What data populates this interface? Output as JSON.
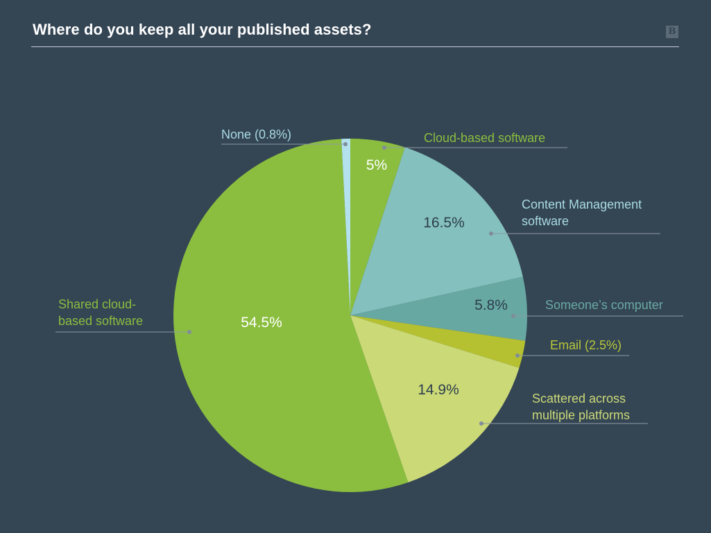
{
  "title": "Where do you keep all your published assets?",
  "logo": {
    "text": "B",
    "icon": "brand-logo-icon"
  },
  "colors": {
    "background": "#344554",
    "leader": "#8e9aa5",
    "dot": "#7f8d99"
  },
  "chart_data": {
    "type": "pie",
    "title": "Where do you keep all your published assets?",
    "start_angle_deg": 0,
    "direction": "clockwise",
    "slices": [
      {
        "label": "Cloud-based software",
        "value": 5,
        "value_label": "5%",
        "color": "#8bbe3f",
        "label_color": "#8bbe3f",
        "value_color": "#ffffff"
      },
      {
        "label": "Content Management software",
        "value": 16.5,
        "value_label": "16.5%",
        "color": "#84c0bd",
        "label_color": "#a9dbe3",
        "value_color": "#2d3e4d"
      },
      {
        "label": "Someone’s computer",
        "value": 5.8,
        "value_label": "5.8%",
        "color": "#67a8a2",
        "label_color": "#6aaaa4",
        "value_color": "#2d3e4d"
      },
      {
        "label": "Email (2.5%)",
        "value": 2.5,
        "value_label": "",
        "color": "#b5c131",
        "label_color": "#b9c83a",
        "value_color": "#2d3e4d"
      },
      {
        "label": "Scattered across multiple platforms",
        "value": 14.9,
        "value_label": "14.9%",
        "color": "#cbd977",
        "label_color": "#cbd977",
        "value_color": "#2d3e4d"
      },
      {
        "label": "Shared cloud-based software",
        "value": 54.5,
        "value_label": "54.5%",
        "color": "#8bbe3f",
        "label_color": "#8bbe3f",
        "value_color": "#ffffff"
      },
      {
        "label": "None (0.8%)",
        "value": 0.8,
        "value_label": "",
        "color": "#b3e2ee",
        "label_color": "#a9dbe3",
        "value_color": "#2d3e4d"
      }
    ]
  }
}
